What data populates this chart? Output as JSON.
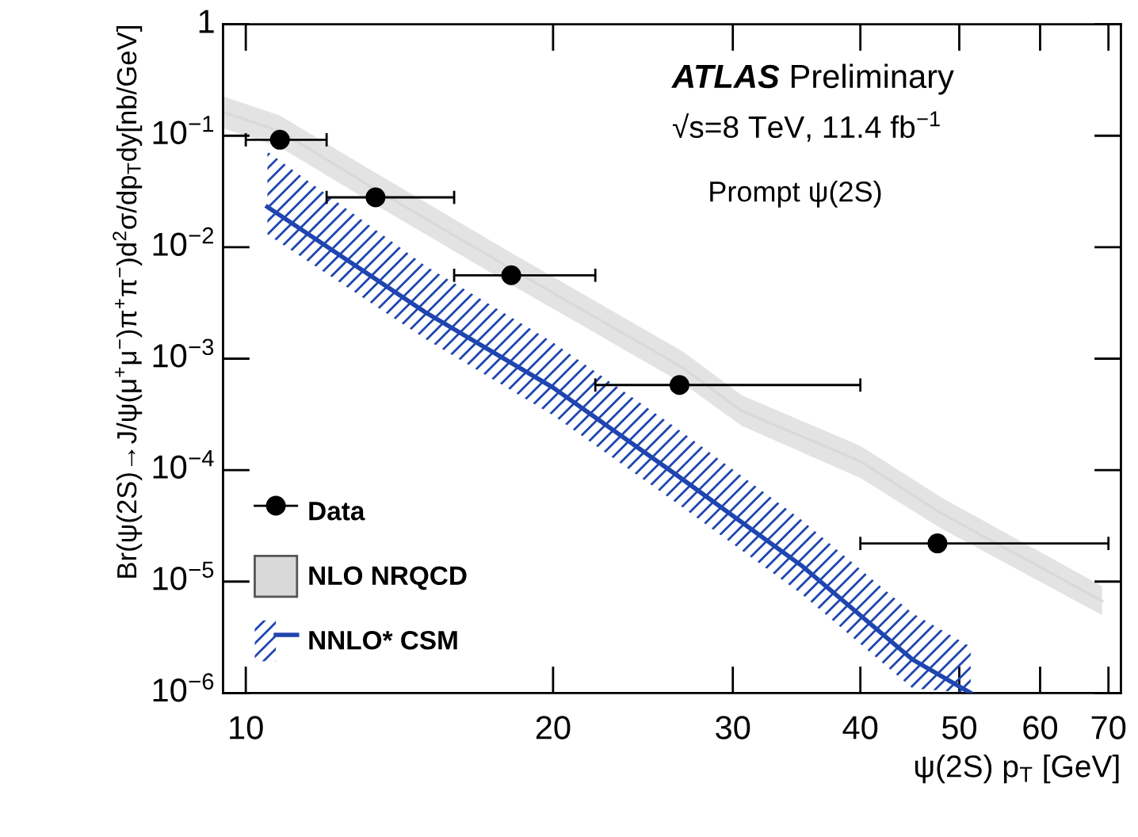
{
  "chart_data": {
    "type": "scatter",
    "xlabel": "ψ(2S) p$_{T}$ [GeV]",
    "ylabel": "Br(ψ(2S)→J/ψ(μ$^{+}$μ$^{−}$)π$^{+}$π$^{−}$)d$^{2}$σ/dp$_{T}$dy[nb/GeV]",
    "annotations": [
      "ATLAS",
      "Preliminary",
      "√s=8 TeV, 11.4 fb$^{−1}$",
      "Prompt ψ(2S)"
    ],
    "log": "xy",
    "xlim": [
      9.5,
      72
    ],
    "ylim": [
      1e-06,
      1
    ],
    "xticks": [
      10,
      20,
      30,
      40,
      50,
      60,
      70
    ],
    "yticks": [
      {
        "value": 1e-06,
        "label": "10$^{−6}$"
      },
      {
        "value": 1e-05,
        "label": "10$^{−5}$"
      },
      {
        "value": 0.0001,
        "label": "10$^{−4}$"
      },
      {
        "value": 0.001,
        "label": "10$^{−3}$"
      },
      {
        "value": 0.01,
        "label": "10$^{−2}$"
      },
      {
        "value": 0.1,
        "label": "10$^{−1}$"
      },
      1
    ],
    "grid": false,
    "legend": "bottom left",
    "series": [
      {
        "name": "Data",
        "color": "#000000",
        "marker": "circle",
        "x": [
          10.8,
          13.4,
          18.2,
          26.6,
          47.6
        ],
        "values": [
          0.092,
          0.028,
          0.0056,
          0.00058,
          2.2e-05
        ],
        "xerrors": [
          [
            10,
            12
          ],
          [
            12,
            16
          ],
          [
            16,
            22
          ],
          [
            22,
            40
          ],
          [
            40,
            70
          ]
        ]
      },
      {
        "name": "NLO NRQCD",
        "type": "line",
        "color": "#d9d9d9",
        "x": [
          9.5,
          10.8,
          13.4,
          18.2,
          26.8,
          30.6,
          40,
          48,
          69
        ],
        "values": [
          0.163,
          0.11,
          0.033,
          0.0064,
          0.00083,
          0.00034,
          0.00012,
          4.1e-05,
          6.7e-06
        ],
        "lower": [
          0.117,
          0.079,
          0.024,
          0.0046,
          0.0006,
          0.00025,
          8.5e-05,
          3e-05,
          5e-06
        ],
        "upper": [
          0.226,
          0.152,
          0.0465,
          0.0089,
          0.00116,
          0.00047,
          0.000165,
          5.7e-05,
          9.1e-06
        ]
      },
      {
        "name": "NNLO* CSM",
        "type": "line",
        "color": "#1f45b0",
        "line_style": "solid",
        "marker": "none",
        "x": [
          10.5,
          15,
          20,
          26.4,
          35,
          45,
          51.3
        ],
        "values": [
          0.023,
          0.0026,
          0.00055,
          9.1e-05,
          1.4e-05,
          2e-06,
          1e-06
        ],
        "lower": [
          0.013,
          0.0015,
          0.00031,
          5.1e-05,
          7.8e-06,
          1.1e-06,
          1e-06
        ],
        "upper": [
          0.072,
          0.0068,
          0.0014,
          0.00024,
          3.6e-05,
          5.2e-06,
          2.6e-06
        ]
      }
    ]
  }
}
